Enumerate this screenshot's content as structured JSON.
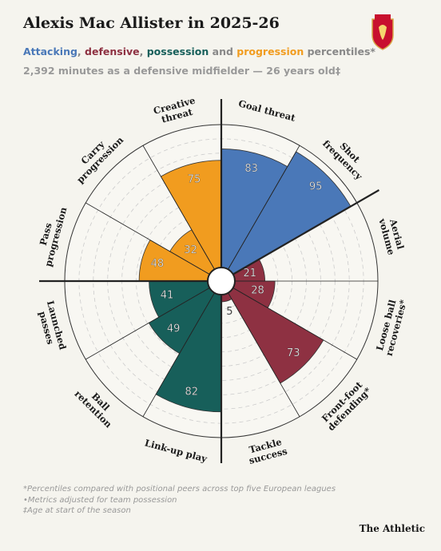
{
  "header": {
    "title": "Alexis Mac Allister in 2025-26",
    "subtitle_parts": [
      {
        "text": "Attacking",
        "color": "#4a78b8"
      },
      {
        "text": ", "
      },
      {
        "text": "defensive",
        "color": "#8e3142"
      },
      {
        "text": ", "
      },
      {
        "text": "possession",
        "color": "#175f5a"
      },
      {
        "text": " and "
      },
      {
        "text": "progression",
        "color": "#f19c1f"
      },
      {
        "text": " percentiles*"
      }
    ],
    "info": "2,392 minutes as a defensive midfielder — 26 years old‡"
  },
  "chart_data": {
    "type": "polar-area",
    "categories": [
      "Goal threat",
      "Shot frequency",
      "Aerial volume",
      "Loose ball recoveries*",
      "Front-foot defending*",
      "Tackle success",
      "Link-up play",
      "Ball retention",
      "Launched passes",
      "Pass progression",
      "Carry progression",
      "Creative threat"
    ],
    "values": [
      83,
      95,
      21,
      28,
      73,
      5,
      82,
      49,
      41,
      48,
      32,
      75
    ],
    "colors": [
      "#4a78b8",
      "#4a78b8",
      "#8e3142",
      "#8e3142",
      "#8e3142",
      "#8e3142",
      "#175f5a",
      "#175f5a",
      "#175f5a",
      "#f19c1f",
      "#f19c1f",
      "#f19c1f"
    ],
    "ylim": [
      0,
      100
    ]
  },
  "footnotes": [
    "*Percentiles compared with positional peers across top five European leagues",
    "•Metrics adjusted for team possession",
    "‡Age at start of the season"
  ],
  "brand": "The Athletic"
}
